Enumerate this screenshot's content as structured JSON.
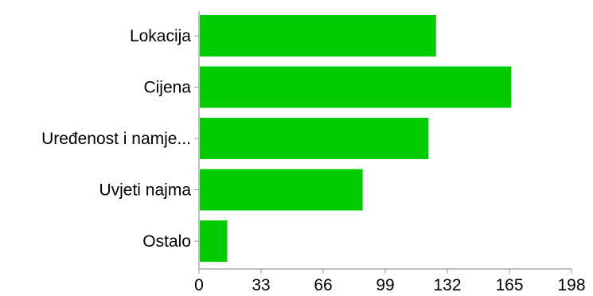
{
  "chart_data": {
    "type": "bar",
    "orientation": "horizontal",
    "categories": [
      "Lokacija",
      "Cijena",
      "Uređenost i namje...",
      "Uvjeti najma",
      "Ostalo"
    ],
    "values": [
      126,
      166,
      122,
      87,
      15
    ],
    "xlim": [
      0,
      198
    ],
    "xticks": [
      "0",
      "33",
      "66",
      "99",
      "132",
      "165",
      "198"
    ],
    "grid": false,
    "legend": "none",
    "colors": {
      "bar": "#00cc00",
      "axis": "#999999",
      "text": "#000000"
    }
  }
}
